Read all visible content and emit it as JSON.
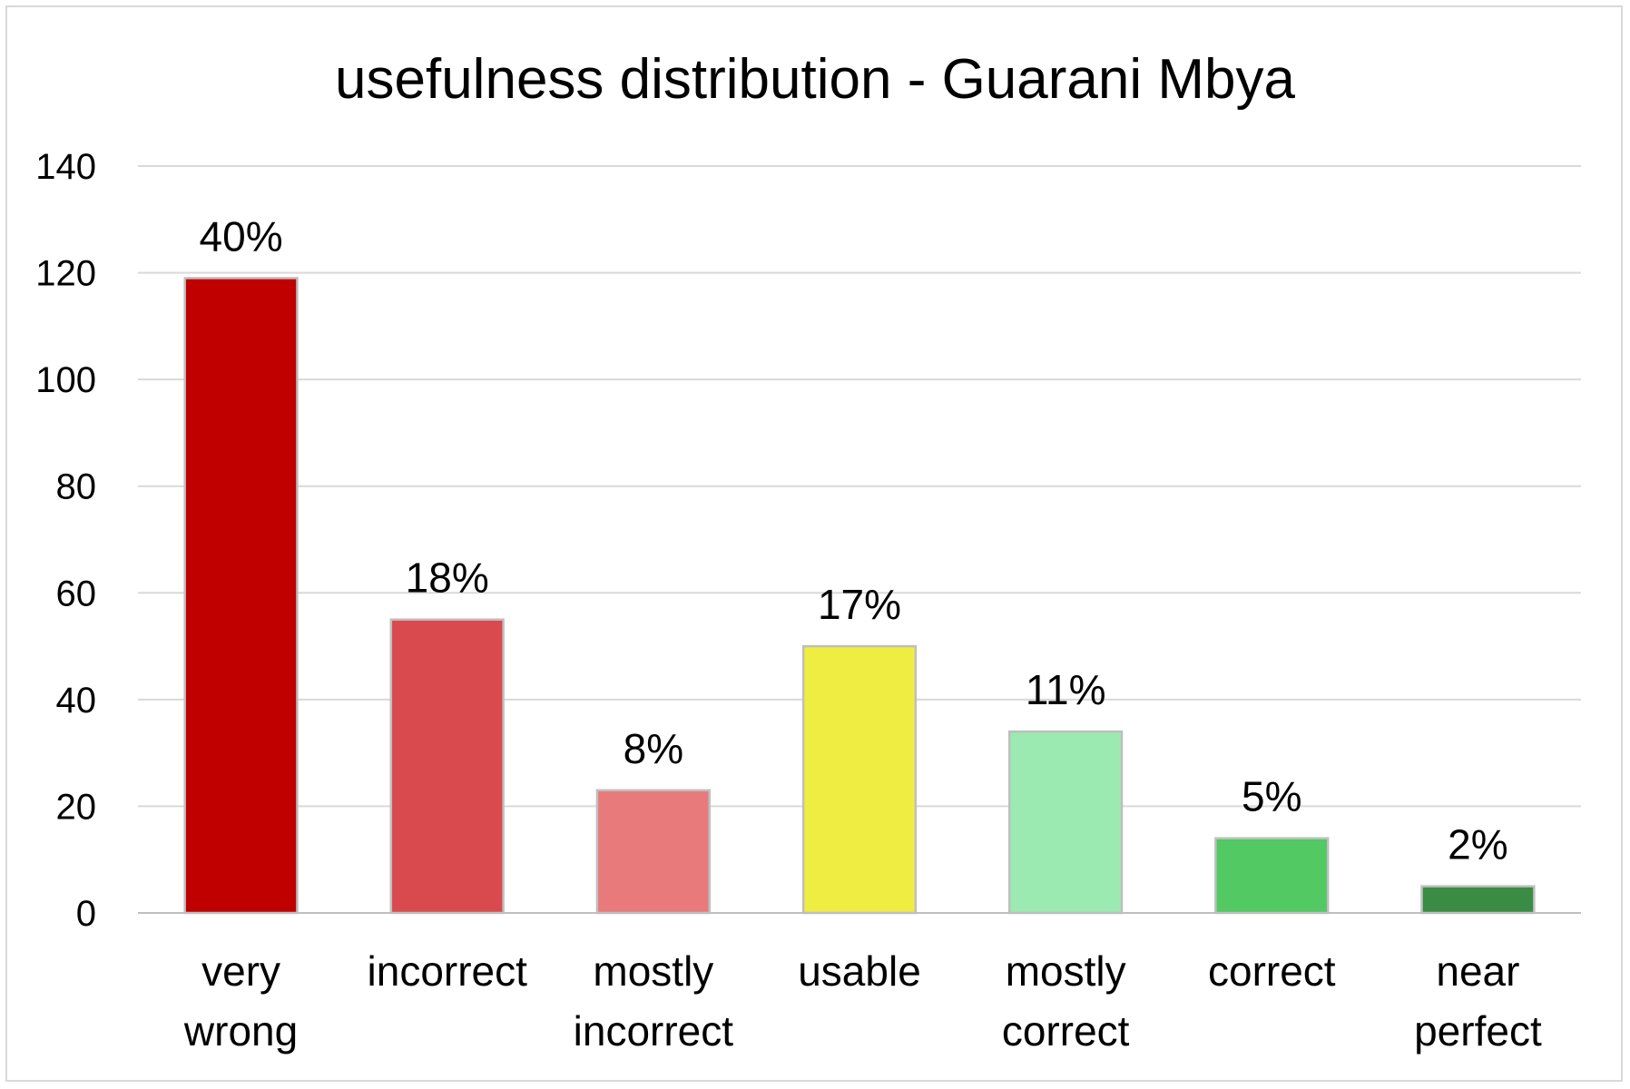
{
  "chart_data": {
    "type": "bar",
    "title": "usefulness distribution - Guarani Mbya",
    "xlabel": "",
    "ylabel": "",
    "ylim": [
      0,
      140
    ],
    "yticks": [
      0,
      20,
      40,
      60,
      80,
      100,
      120,
      140
    ],
    "grid": true,
    "legend": "none",
    "categories": [
      [
        "very",
        "wrong"
      ],
      [
        "incorrect"
      ],
      [
        "mostly",
        "incorrect"
      ],
      [
        "usable"
      ],
      [
        "mostly",
        "correct"
      ],
      [
        "correct"
      ],
      [
        "near",
        "perfect"
      ]
    ],
    "values": [
      119,
      55,
      23,
      50,
      34,
      14,
      5
    ],
    "data_labels": [
      "40%",
      "18%",
      "8%",
      "17%",
      "11%",
      "5%",
      "2%"
    ],
    "colors": [
      "#c00000",
      "#d94a4e",
      "#e87a7c",
      "#f0ed42",
      "#9aeab2",
      "#52c963",
      "#3a8c45"
    ]
  }
}
